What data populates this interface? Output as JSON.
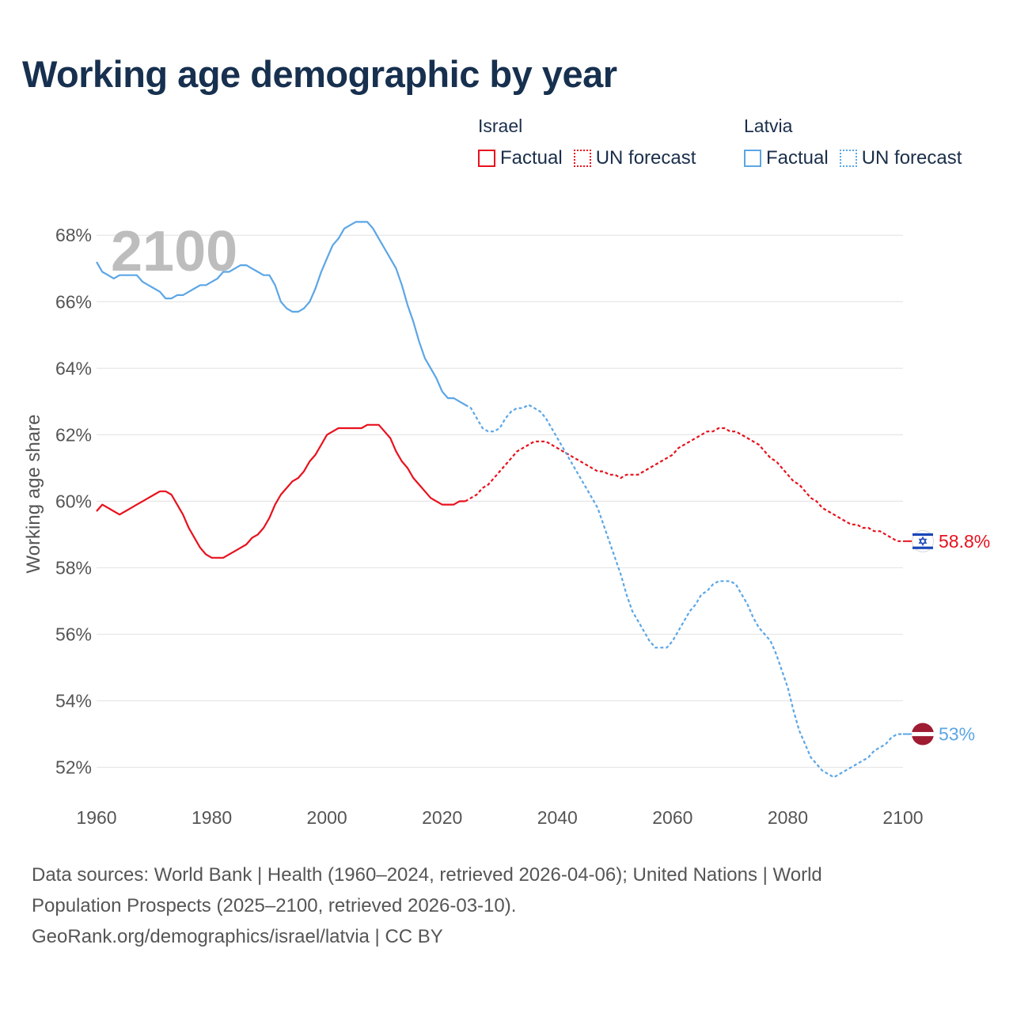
{
  "title": "Working age demographic by year",
  "legend": {
    "groups": [
      {
        "name": "Israel",
        "factual_label": "Factual",
        "forecast_label": "UN forecast"
      },
      {
        "name": "Latvia",
        "factual_label": "Factual",
        "forecast_label": "UN forecast"
      }
    ]
  },
  "colors": {
    "israel": "#e8111d",
    "latvia": "#5ba6e6",
    "grid": "#e6e6e6",
    "axis_text": "#555555",
    "year_watermark": "#bdbdbd"
  },
  "sources": {
    "line1": "Data sources: World Bank | Health (1960–2024, retrieved 2026-04-06); United Nations | World",
    "line2": "Population Prospects (2025–2100, retrieved 2026-03-10).",
    "line3": "GeoRank.org/demographics/israel/latvia | CC BY"
  },
  "chart_data": {
    "type": "line",
    "title": "Working age demographic by year",
    "year_label": "2100",
    "xlabel": "",
    "ylabel": "Working age share",
    "xlim": [
      1960,
      2100
    ],
    "ylim": [
      50.8,
      69.6
    ],
    "x_ticks": [
      1960,
      1980,
      2000,
      2020,
      2040,
      2060,
      2080,
      2100
    ],
    "y_ticks": [
      52,
      54,
      56,
      58,
      60,
      62,
      64,
      66,
      68
    ],
    "y_tick_labels": [
      "52%",
      "54%",
      "56%",
      "58%",
      "60%",
      "62%",
      "64%",
      "66%",
      "68%"
    ],
    "x_tick_labels": [
      "1960",
      "1980",
      "2000",
      "2020",
      "2040",
      "2060",
      "2080",
      "2100"
    ],
    "factual_end_year": 2024,
    "grid": true,
    "series": [
      {
        "name": "Israel",
        "color": "#e8111d",
        "end_label": "58.8%",
        "flag": "israel",
        "points": [
          [
            1960,
            59.7
          ],
          [
            1961,
            59.9
          ],
          [
            1962,
            59.8
          ],
          [
            1963,
            59.7
          ],
          [
            1964,
            59.6
          ],
          [
            1965,
            59.7
          ],
          [
            1966,
            59.8
          ],
          [
            1967,
            59.9
          ],
          [
            1968,
            60.0
          ],
          [
            1969,
            60.1
          ],
          [
            1970,
            60.2
          ],
          [
            1971,
            60.3
          ],
          [
            1972,
            60.3
          ],
          [
            1973,
            60.2
          ],
          [
            1974,
            59.9
          ],
          [
            1975,
            59.6
          ],
          [
            1976,
            59.2
          ],
          [
            1977,
            58.9
          ],
          [
            1978,
            58.6
          ],
          [
            1979,
            58.4
          ],
          [
            1980,
            58.3
          ],
          [
            1981,
            58.3
          ],
          [
            1982,
            58.3
          ],
          [
            1983,
            58.4
          ],
          [
            1984,
            58.5
          ],
          [
            1985,
            58.6
          ],
          [
            1986,
            58.7
          ],
          [
            1987,
            58.9
          ],
          [
            1988,
            59.0
          ],
          [
            1989,
            59.2
          ],
          [
            1990,
            59.5
          ],
          [
            1991,
            59.9
          ],
          [
            1992,
            60.2
          ],
          [
            1993,
            60.4
          ],
          [
            1994,
            60.6
          ],
          [
            1995,
            60.7
          ],
          [
            1996,
            60.9
          ],
          [
            1997,
            61.2
          ],
          [
            1998,
            61.4
          ],
          [
            1999,
            61.7
          ],
          [
            2000,
            62.0
          ],
          [
            2001,
            62.1
          ],
          [
            2002,
            62.2
          ],
          [
            2003,
            62.2
          ],
          [
            2004,
            62.2
          ],
          [
            2005,
            62.2
          ],
          [
            2006,
            62.2
          ],
          [
            2007,
            62.3
          ],
          [
            2008,
            62.3
          ],
          [
            2009,
            62.3
          ],
          [
            2010,
            62.1
          ],
          [
            2011,
            61.9
          ],
          [
            2012,
            61.5
          ],
          [
            2013,
            61.2
          ],
          [
            2014,
            61.0
          ],
          [
            2015,
            60.7
          ],
          [
            2016,
            60.5
          ],
          [
            2017,
            60.3
          ],
          [
            2018,
            60.1
          ],
          [
            2019,
            60.0
          ],
          [
            2020,
            59.9
          ],
          [
            2021,
            59.9
          ],
          [
            2022,
            59.9
          ],
          [
            2023,
            60.0
          ],
          [
            2024,
            60.0
          ],
          [
            2025,
            60.1
          ],
          [
            2026,
            60.2
          ],
          [
            2027,
            60.4
          ],
          [
            2028,
            60.5
          ],
          [
            2029,
            60.7
          ],
          [
            2030,
            60.9
          ],
          [
            2031,
            61.1
          ],
          [
            2032,
            61.3
          ],
          [
            2033,
            61.5
          ],
          [
            2034,
            61.6
          ],
          [
            2035,
            61.7
          ],
          [
            2036,
            61.8
          ],
          [
            2037,
            61.8
          ],
          [
            2038,
            61.8
          ],
          [
            2039,
            61.7
          ],
          [
            2040,
            61.6
          ],
          [
            2041,
            61.5
          ],
          [
            2042,
            61.4
          ],
          [
            2043,
            61.3
          ],
          [
            2044,
            61.2
          ],
          [
            2045,
            61.1
          ],
          [
            2046,
            61.0
          ],
          [
            2047,
            60.9
          ],
          [
            2048,
            60.9
          ],
          [
            2049,
            60.8
          ],
          [
            2050,
            60.8
          ],
          [
            2051,
            60.7
          ],
          [
            2052,
            60.8
          ],
          [
            2053,
            60.8
          ],
          [
            2054,
            60.8
          ],
          [
            2055,
            60.9
          ],
          [
            2056,
            61.0
          ],
          [
            2057,
            61.1
          ],
          [
            2058,
            61.2
          ],
          [
            2059,
            61.3
          ],
          [
            2060,
            61.4
          ],
          [
            2061,
            61.6
          ],
          [
            2062,
            61.7
          ],
          [
            2063,
            61.8
          ],
          [
            2064,
            61.9
          ],
          [
            2065,
            62.0
          ],
          [
            2066,
            62.1
          ],
          [
            2067,
            62.1
          ],
          [
            2068,
            62.2
          ],
          [
            2069,
            62.2
          ],
          [
            2070,
            62.1
          ],
          [
            2071,
            62.1
          ],
          [
            2072,
            62.0
          ],
          [
            2073,
            61.9
          ],
          [
            2074,
            61.8
          ],
          [
            2075,
            61.7
          ],
          [
            2076,
            61.5
          ],
          [
            2077,
            61.3
          ],
          [
            2078,
            61.2
          ],
          [
            2079,
            61.0
          ],
          [
            2080,
            60.8
          ],
          [
            2081,
            60.6
          ],
          [
            2082,
            60.5
          ],
          [
            2083,
            60.3
          ],
          [
            2084,
            60.1
          ],
          [
            2085,
            60.0
          ],
          [
            2086,
            59.8
          ],
          [
            2087,
            59.7
          ],
          [
            2088,
            59.6
          ],
          [
            2089,
            59.5
          ],
          [
            2090,
            59.4
          ],
          [
            2091,
            59.3
          ],
          [
            2092,
            59.3
          ],
          [
            2093,
            59.2
          ],
          [
            2094,
            59.2
          ],
          [
            2095,
            59.1
          ],
          [
            2096,
            59.1
          ],
          [
            2097,
            59.0
          ],
          [
            2098,
            58.9
          ],
          [
            2099,
            58.8
          ],
          [
            2100,
            58.8
          ]
        ]
      },
      {
        "name": "Latvia",
        "color": "#5ba6e6",
        "end_label": "53%",
        "flag": "latvia",
        "points": [
          [
            1960,
            67.2
          ],
          [
            1961,
            66.9
          ],
          [
            1962,
            66.8
          ],
          [
            1963,
            66.7
          ],
          [
            1964,
            66.8
          ],
          [
            1965,
            66.8
          ],
          [
            1966,
            66.8
          ],
          [
            1967,
            66.8
          ],
          [
            1968,
            66.6
          ],
          [
            1969,
            66.5
          ],
          [
            1970,
            66.4
          ],
          [
            1971,
            66.3
          ],
          [
            1972,
            66.1
          ],
          [
            1973,
            66.1
          ],
          [
            1974,
            66.2
          ],
          [
            1975,
            66.2
          ],
          [
            1976,
            66.3
          ],
          [
            1977,
            66.4
          ],
          [
            1978,
            66.5
          ],
          [
            1979,
            66.5
          ],
          [
            1980,
            66.6
          ],
          [
            1981,
            66.7
          ],
          [
            1982,
            66.9
          ],
          [
            1983,
            66.9
          ],
          [
            1984,
            67.0
          ],
          [
            1985,
            67.1
          ],
          [
            1986,
            67.1
          ],
          [
            1987,
            67.0
          ],
          [
            1988,
            66.9
          ],
          [
            1989,
            66.8
          ],
          [
            1990,
            66.8
          ],
          [
            1991,
            66.5
          ],
          [
            1992,
            66.0
          ],
          [
            1993,
            65.8
          ],
          [
            1994,
            65.7
          ],
          [
            1995,
            65.7
          ],
          [
            1996,
            65.8
          ],
          [
            1997,
            66.0
          ],
          [
            1998,
            66.4
          ],
          [
            1999,
            66.9
          ],
          [
            2000,
            67.3
          ],
          [
            2001,
            67.7
          ],
          [
            2002,
            67.9
          ],
          [
            2003,
            68.2
          ],
          [
            2004,
            68.3
          ],
          [
            2005,
            68.4
          ],
          [
            2006,
            68.4
          ],
          [
            2007,
            68.4
          ],
          [
            2008,
            68.2
          ],
          [
            2009,
            67.9
          ],
          [
            2010,
            67.6
          ],
          [
            2011,
            67.3
          ],
          [
            2012,
            67.0
          ],
          [
            2013,
            66.5
          ],
          [
            2014,
            65.9
          ],
          [
            2015,
            65.4
          ],
          [
            2016,
            64.8
          ],
          [
            2017,
            64.3
          ],
          [
            2018,
            64.0
          ],
          [
            2019,
            63.7
          ],
          [
            2020,
            63.3
          ],
          [
            2021,
            63.1
          ],
          [
            2022,
            63.1
          ],
          [
            2023,
            63.0
          ],
          [
            2024,
            62.9
          ],
          [
            2025,
            62.8
          ],
          [
            2026,
            62.5
          ],
          [
            2027,
            62.2
          ],
          [
            2028,
            62.1
          ],
          [
            2029,
            62.1
          ],
          [
            2030,
            62.2
          ],
          [
            2031,
            62.5
          ],
          [
            2032,
            62.7
          ],
          [
            2033,
            62.8
          ],
          [
            2034,
            62.8
          ],
          [
            2035,
            62.9
          ],
          [
            2036,
            62.8
          ],
          [
            2037,
            62.7
          ],
          [
            2038,
            62.5
          ],
          [
            2039,
            62.2
          ],
          [
            2040,
            61.9
          ],
          [
            2041,
            61.6
          ],
          [
            2042,
            61.3
          ],
          [
            2043,
            61.0
          ],
          [
            2044,
            60.7
          ],
          [
            2045,
            60.4
          ],
          [
            2046,
            60.1
          ],
          [
            2047,
            59.8
          ],
          [
            2048,
            59.3
          ],
          [
            2049,
            58.8
          ],
          [
            2050,
            58.3
          ],
          [
            2051,
            57.8
          ],
          [
            2052,
            57.2
          ],
          [
            2053,
            56.7
          ],
          [
            2054,
            56.4
          ],
          [
            2055,
            56.1
          ],
          [
            2056,
            55.8
          ],
          [
            2057,
            55.6
          ],
          [
            2058,
            55.6
          ],
          [
            2059,
            55.6
          ],
          [
            2060,
            55.8
          ],
          [
            2061,
            56.1
          ],
          [
            2062,
            56.4
          ],
          [
            2063,
            56.7
          ],
          [
            2064,
            56.9
          ],
          [
            2065,
            57.2
          ],
          [
            2066,
            57.3
          ],
          [
            2067,
            57.5
          ],
          [
            2068,
            57.6
          ],
          [
            2069,
            57.6
          ],
          [
            2070,
            57.6
          ],
          [
            2071,
            57.5
          ],
          [
            2072,
            57.2
          ],
          [
            2073,
            56.9
          ],
          [
            2074,
            56.5
          ],
          [
            2075,
            56.2
          ],
          [
            2076,
            56.0
          ],
          [
            2077,
            55.8
          ],
          [
            2078,
            55.4
          ],
          [
            2079,
            54.9
          ],
          [
            2080,
            54.4
          ],
          [
            2081,
            53.7
          ],
          [
            2082,
            53.1
          ],
          [
            2083,
            52.7
          ],
          [
            2084,
            52.3
          ],
          [
            2085,
            52.1
          ],
          [
            2086,
            51.9
          ],
          [
            2087,
            51.8
          ],
          [
            2088,
            51.7
          ],
          [
            2089,
            51.8
          ],
          [
            2090,
            51.9
          ],
          [
            2091,
            52.0
          ],
          [
            2092,
            52.1
          ],
          [
            2093,
            52.2
          ],
          [
            2094,
            52.3
          ],
          [
            2095,
            52.5
          ],
          [
            2096,
            52.6
          ],
          [
            2097,
            52.7
          ],
          [
            2098,
            52.9
          ],
          [
            2099,
            53.0
          ],
          [
            2100,
            53.0
          ]
        ]
      }
    ]
  }
}
